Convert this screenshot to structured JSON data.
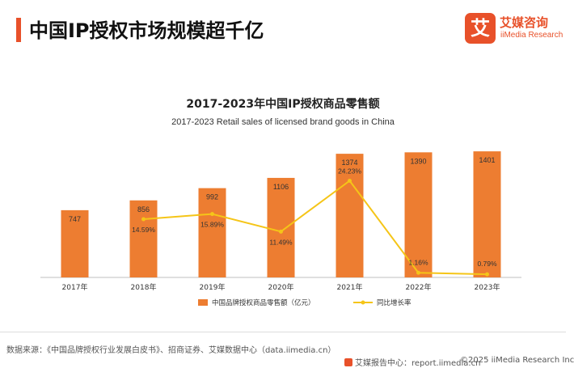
{
  "header": {
    "title": "中国IP授权市场规模超千亿",
    "logo_glyph": "艾",
    "logo_name": "艾媒咨询",
    "logo_sub": "iiMedia Research"
  },
  "footer": {
    "source": "数据来源：《中国品牌授权行业发展白皮书》、招商证券、艾媒数据中心（data.iimedia.cn）",
    "site": "艾媒报告中心：report.iimedia.cn",
    "copyright": "©2025  iiMedia Research  Inc"
  },
  "colors": {
    "accent": "#e8512a",
    "bar": "#ed7d31",
    "line": "#f5c518"
  },
  "chart_data": {
    "type": "bar",
    "title": "2017-2023年中国IP授权商品零售额",
    "subtitle": "2017-2023 Retail sales of licensed brand goods in China",
    "categories": [
      "2017年",
      "2018年",
      "2019年",
      "2020年",
      "2021年",
      "2022年",
      "2023年"
    ],
    "series": [
      {
        "name": "中国品牌授权商品零售额（亿元）",
        "kind": "bar",
        "values": [
          747,
          856,
          992,
          1106,
          1374,
          1390,
          1401
        ],
        "labels": [
          "747",
          "856",
          "992",
          "1106",
          "1374",
          "1390",
          "1401"
        ]
      },
      {
        "name": "同比增长率",
        "kind": "line",
        "values": [
          null,
          14.59,
          15.89,
          11.49,
          24.23,
          1.16,
          0.79
        ],
        "labels": [
          "",
          "14.59%",
          "15.89%",
          "11.49%",
          "24.23%",
          "1.16%",
          "0.79%"
        ]
      }
    ],
    "bar_ylim": [
      0,
      1420
    ],
    "line_ylim": [
      0,
      30
    ],
    "legend_position": "bottom-center",
    "grid": false
  }
}
